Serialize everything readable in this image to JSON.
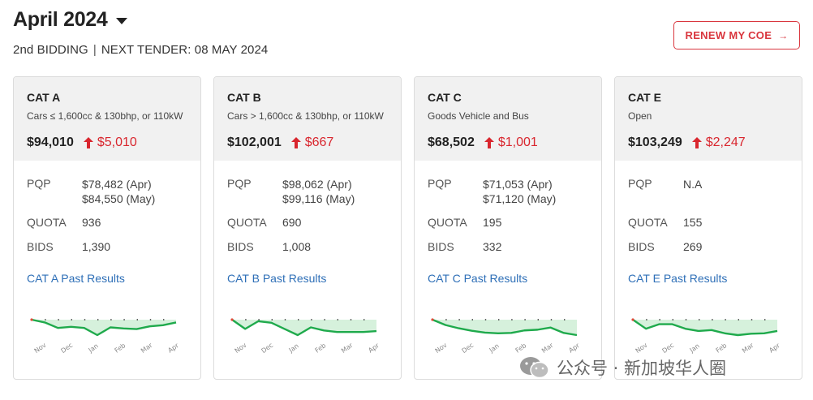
{
  "header": {
    "title": "April 2024",
    "bidding": "2nd BIDDING",
    "separator": "|",
    "next_tender": "NEXT TENDER: 08 MAY 2024"
  },
  "renew_button": {
    "label": "RENEW MY COE",
    "arrow": "→"
  },
  "labels": {
    "pqp": "PQP",
    "quota": "QUOTA",
    "bids": "BIDS"
  },
  "months": [
    "Nov",
    "Dec",
    "Jan",
    "Feb",
    "Mar",
    "Apr"
  ],
  "colors": {
    "accent_red": "#d9262e",
    "link_blue": "#2e6fb7",
    "spark_line": "#1faa4c",
    "spark_fill": "#d6f1dc"
  },
  "cards": [
    {
      "name": "CAT A",
      "desc": "Cars ≤ 1,600cc & 130bhp, or 110kW",
      "price": "$94,010",
      "change": "$5,010",
      "pqp1": "$78,482 (Apr)",
      "pqp2": "$84,550 (May)",
      "quota": "936",
      "bids": "1,390",
      "link": "CAT A Past Results",
      "spark": [
        93.5,
        93,
        92,
        92.2,
        92,
        90.7,
        92.1,
        91.9,
        91.8,
        92.3,
        92.5,
        93
      ]
    },
    {
      "name": "CAT B",
      "desc": "Cars > 1,600cc & 130bhp, or 110kW",
      "price": "$102,001",
      "change": "$667",
      "pqp1": "$98,062 (Apr)",
      "pqp2": "$99,116 (May)",
      "quota": "690",
      "bids": "1,008",
      "link": "CAT B Past Results",
      "spark": [
        104,
        101,
        103.5,
        103,
        101,
        99,
        101.5,
        100.5,
        100,
        100,
        100,
        100.3
      ]
    },
    {
      "name": "CAT C",
      "desc": "Goods Vehicle and Bus",
      "price": "$68,502",
      "change": "$1,001",
      "pqp1": "$71,053 (Apr)",
      "pqp2": "$71,120 (May)",
      "quota": "195",
      "bids": "332",
      "link": "CAT C Past Results",
      "spark": [
        76,
        74.5,
        73.6,
        72.9,
        72.4,
        72.2,
        72.3,
        73,
        73.2,
        73.8,
        72.3,
        71.7
      ]
    },
    {
      "name": "CAT E",
      "desc": "Open",
      "price": "$103,249",
      "change": "$2,247",
      "pqp1": "N.A",
      "pqp2": "",
      "quota": "155",
      "bids": "269",
      "link": "CAT E Past Results",
      "spark": [
        104,
        102,
        103,
        103,
        102,
        101.5,
        101.7,
        101,
        100.6,
        100.9,
        101,
        101.5
      ]
    }
  ],
  "watermark": {
    "text": "公众号 · 新加坡华人圈"
  }
}
